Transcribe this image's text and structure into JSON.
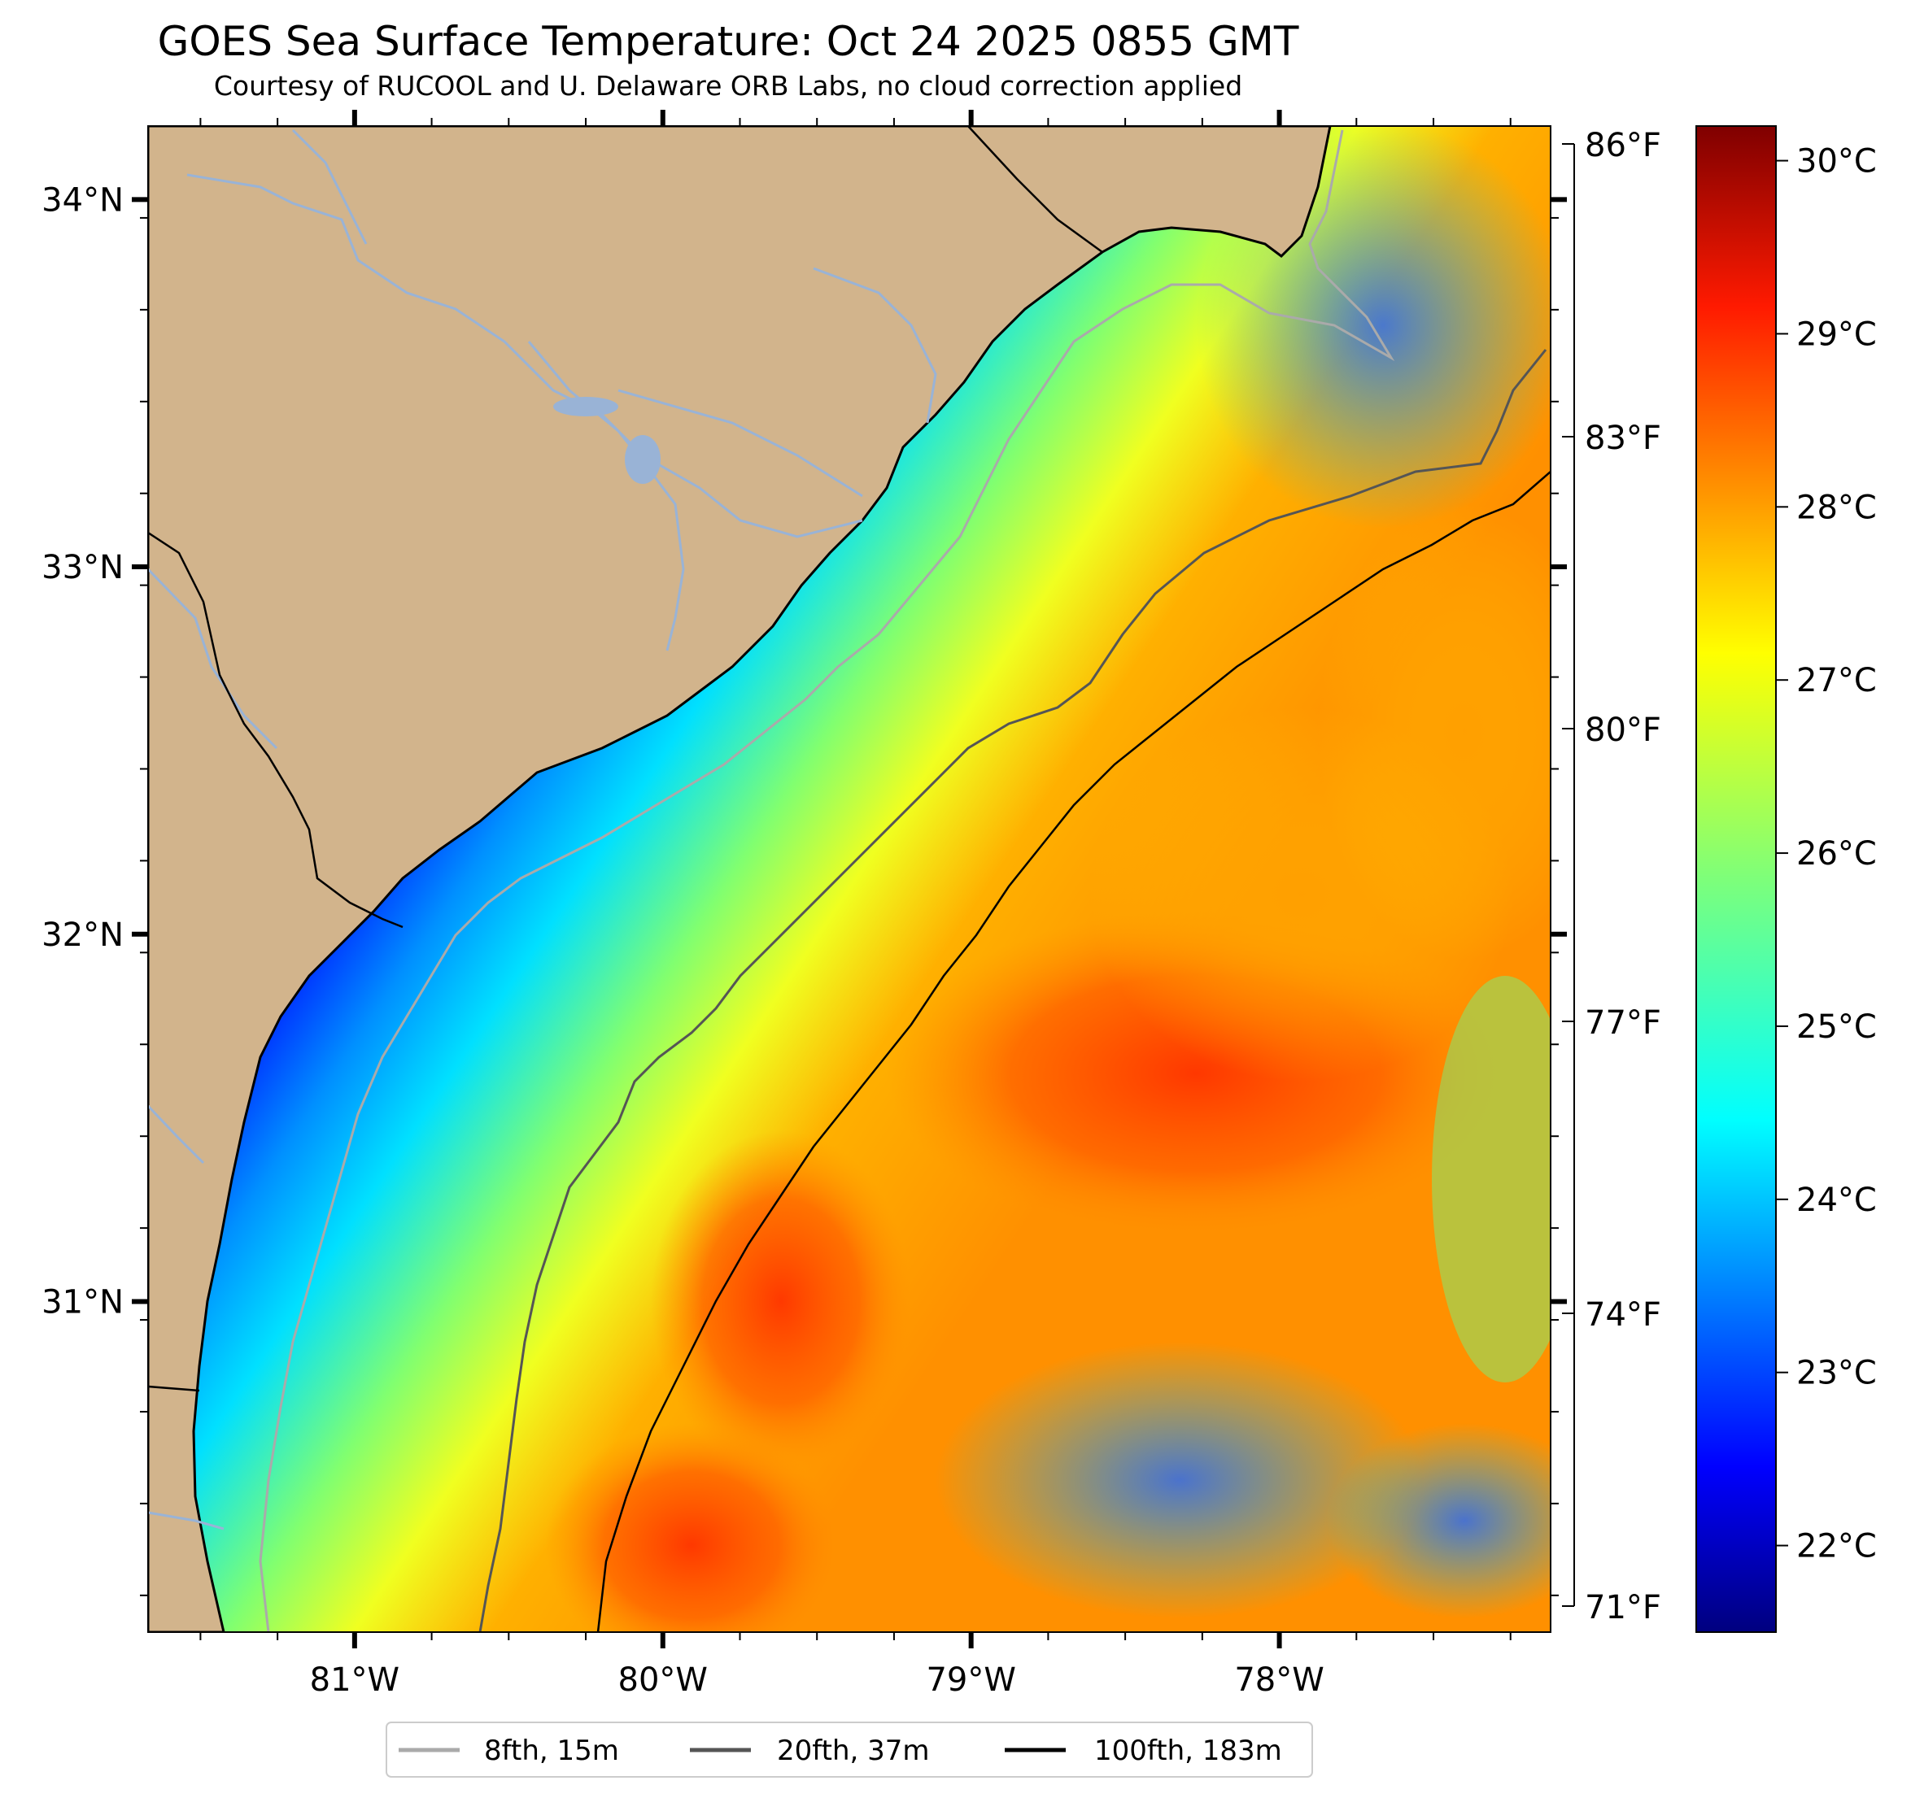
{
  "title": "GOES Sea Surface Temperature: Oct 24 2025 0855 GMT",
  "subtitle": "Courtesy of RUCOOL and U. Delaware ORB Labs, no cloud correction applied",
  "map": {
    "lat_range": [
      30.1,
      34.2
    ],
    "lon_range": [
      -81.67,
      -77.12
    ],
    "lat_ticks": [
      {
        "value": 34,
        "label": "34°N"
      },
      {
        "value": 33,
        "label": "33°N"
      },
      {
        "value": 32,
        "label": "32°N"
      },
      {
        "value": 31,
        "label": "31°N"
      }
    ],
    "lon_ticks": [
      {
        "value": -81,
        "label": "81°W"
      },
      {
        "value": -80,
        "label": "80°W"
      },
      {
        "value": -79,
        "label": "79°W"
      },
      {
        "value": -78,
        "label": "78°W"
      }
    ],
    "colors": {
      "land": "#d2b48c",
      "river": "#99b3d6",
      "coast": "#000000"
    }
  },
  "fahrenheit_ticks": [
    "86°F",
    "83°F",
    "80°F",
    "77°F",
    "74°F",
    "71°F"
  ],
  "colorbar": {
    "range_c": [
      21.5,
      30.2
    ],
    "colormap": "jet",
    "ticks": [
      {
        "value": 30,
        "label": "30°C"
      },
      {
        "value": 29,
        "label": "29°C"
      },
      {
        "value": 28,
        "label": "28°C"
      },
      {
        "value": 27,
        "label": "27°C"
      },
      {
        "value": 26,
        "label": "26°C"
      },
      {
        "value": 25,
        "label": "25°C"
      },
      {
        "value": 24,
        "label": "24°C"
      },
      {
        "value": 23,
        "label": "23°C"
      },
      {
        "value": 22,
        "label": "22°C"
      }
    ]
  },
  "legend": [
    {
      "label": "8fth, 15m",
      "color": "#aaaaaa"
    },
    {
      "label": "20fth, 37m",
      "color": "#555555"
    },
    {
      "label": "100fth, 183m",
      "color": "#000000"
    }
  ]
}
